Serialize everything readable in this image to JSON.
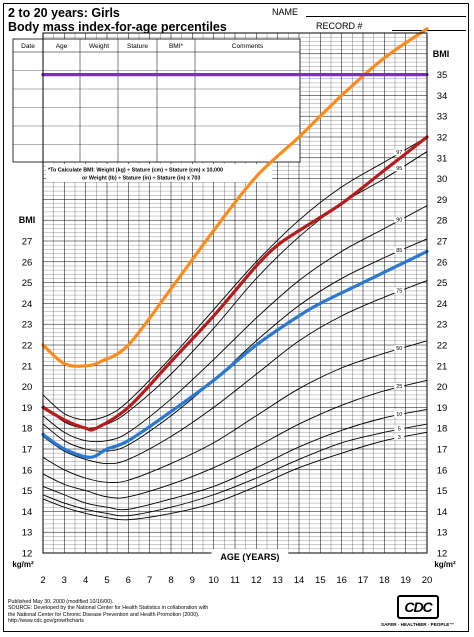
{
  "header": {
    "title_line1": "2 to 20 years: Girls",
    "title_line2": "Body mass index-for-age percentiles",
    "name_label": "NAME",
    "record_label": "RECORD #"
  },
  "table": {
    "columns": [
      "Date",
      "Age",
      "Weight",
      "Stature",
      "BMI*",
      "Comments"
    ]
  },
  "formula": {
    "line1": "*To Calculate BMI: Weight (kg) ÷ Stature (cm) ÷ Stature (cm) x 10,000",
    "line2": "or Weight (lb) ÷ Stature (in) ÷ Stature (in) x 703"
  },
  "footer": {
    "line1": "Published May 30, 2000 (modified 10/16/00).",
    "line2": "SOURCE: Developed by the National Center for Health Statistics in collaboration with",
    "line3": "the National Center for Chronic Disease Prevention and Health Promotion (2000).",
    "line4": "http://www.cdc.gov/growthcharts",
    "logo": "CDC",
    "tagline": "SAFER · HEALTHIER · PEOPLE™"
  },
  "colors": {
    "orange": "#ff8c1a",
    "red": "#b51c1c",
    "blue": "#2a78d0",
    "purple": "#7b2fbe"
  },
  "chart_data": {
    "type": "line",
    "xlabel": "AGE (YEARS)",
    "ylabel_top": "BMI",
    "ylabel_mid": "BMI",
    "unit_label": "kg/m²",
    "xlim": [
      2,
      20
    ],
    "ylim": [
      12,
      37
    ],
    "x_ticks": [
      2,
      3,
      4,
      5,
      6,
      7,
      8,
      9,
      10,
      11,
      12,
      13,
      14,
      15,
      16,
      17,
      18,
      19,
      20
    ],
    "y_ticks_right": [
      12,
      13,
      14,
      15,
      16,
      17,
      18,
      19,
      20,
      21,
      22,
      23,
      24,
      25,
      26,
      27,
      28,
      29,
      30,
      31,
      32,
      33,
      34,
      35
    ],
    "y_ticks_left": [
      12,
      13,
      14,
      15,
      16,
      17,
      18,
      19,
      20,
      21,
      22,
      23,
      24,
      25,
      26,
      27
    ],
    "percentiles": [
      {
        "name": "97",
        "x": [
          2,
          3,
          4,
          5,
          6,
          8,
          10,
          12,
          14,
          16,
          18,
          20
        ],
        "y": [
          19.6,
          18.7,
          18.4,
          18.6,
          19.3,
          21.4,
          23.7,
          26.0,
          28.0,
          29.6,
          30.8,
          32.0
        ]
      },
      {
        "name": "95",
        "x": [
          2,
          3,
          4,
          5,
          6,
          8,
          10,
          12,
          14,
          16,
          18,
          20
        ],
        "y": [
          19.1,
          18.3,
          18.0,
          18.2,
          18.8,
          20.6,
          22.8,
          25.2,
          27.2,
          28.8,
          30.0,
          31.3
        ]
      },
      {
        "name": "90",
        "x": [
          2,
          3,
          4,
          5,
          6,
          8,
          10,
          12,
          14,
          16,
          18,
          20
        ],
        "y": [
          18.6,
          17.8,
          17.4,
          17.4,
          17.8,
          19.4,
          21.3,
          23.3,
          25.1,
          26.5,
          27.6,
          28.7
        ]
      },
      {
        "name": "85",
        "x": [
          2,
          3,
          4,
          5,
          6,
          8,
          10,
          12,
          14,
          16,
          18,
          20
        ],
        "y": [
          18.2,
          17.4,
          17.0,
          16.9,
          17.2,
          18.6,
          20.3,
          22.2,
          23.9,
          25.2,
          26.2,
          27.1
        ]
      },
      {
        "name": "75",
        "x": [
          2,
          3,
          4,
          5,
          6,
          8,
          10,
          12,
          14,
          16,
          18,
          20
        ],
        "y": [
          17.6,
          16.9,
          16.5,
          16.3,
          16.5,
          17.6,
          19.0,
          20.6,
          22.2,
          23.4,
          24.3,
          25.1
        ]
      },
      {
        "name": "50",
        "x": [
          2,
          3,
          4,
          5,
          6,
          8,
          10,
          12,
          14,
          16,
          18,
          20
        ],
        "y": [
          16.6,
          16.0,
          15.6,
          15.4,
          15.5,
          16.3,
          17.3,
          18.6,
          19.9,
          20.9,
          21.6,
          22.2
        ]
      },
      {
        "name": "25",
        "x": [
          2,
          3,
          4,
          5,
          6,
          8,
          10,
          12,
          14,
          16,
          18,
          20
        ],
        "y": [
          15.8,
          15.3,
          15.0,
          14.7,
          14.7,
          15.3,
          16.1,
          17.1,
          18.2,
          19.1,
          19.8,
          20.3
        ]
      },
      {
        "name": "10",
        "x": [
          2,
          3,
          4,
          5,
          6,
          8,
          10,
          12,
          14,
          16,
          18,
          20
        ],
        "y": [
          15.2,
          14.8,
          14.4,
          14.2,
          14.1,
          14.6,
          15.2,
          16.1,
          17.1,
          17.9,
          18.5,
          18.9
        ]
      },
      {
        "name": "5",
        "x": [
          2,
          3,
          4,
          5,
          6,
          8,
          10,
          12,
          14,
          16,
          18,
          20
        ],
        "y": [
          14.8,
          14.4,
          14.1,
          13.9,
          13.8,
          14.2,
          14.8,
          15.6,
          16.5,
          17.3,
          17.8,
          18.2
        ]
      },
      {
        "name": "3",
        "x": [
          2,
          3,
          4,
          5,
          6,
          8,
          10,
          12,
          14,
          16,
          18,
          20
        ],
        "y": [
          14.6,
          14.2,
          13.9,
          13.7,
          13.6,
          13.9,
          14.4,
          15.2,
          16.1,
          16.8,
          17.4,
          17.8
        ]
      }
    ],
    "highlight_series": [
      {
        "color": "orange",
        "x": [
          2,
          3,
          4,
          4.7,
          6,
          8,
          10,
          12,
          14,
          16,
          18,
          20
        ],
        "y": [
          22,
          21.1,
          21.0,
          21.2,
          22.0,
          24.7,
          27.5,
          30.1,
          32.0,
          34.0,
          35.8,
          37.2
        ]
      },
      {
        "color": "red",
        "x": [
          2,
          3,
          4,
          4.5,
          6,
          8,
          10,
          12,
          13,
          14,
          16,
          18,
          20
        ],
        "y": [
          19.0,
          18.4,
          18.0,
          18.0,
          19.0,
          21.2,
          23.4,
          25.8,
          26.8,
          27.5,
          28.8,
          30.4,
          32.0
        ]
      },
      {
        "color": "blue",
        "x": [
          2,
          3,
          4.2,
          5,
          6,
          8,
          10,
          12,
          14,
          15,
          17,
          19,
          20
        ],
        "y": [
          17.7,
          17.0,
          16.6,
          17.0,
          17.4,
          18.8,
          20.3,
          22.0,
          23.4,
          24.0,
          25.0,
          26.0,
          26.5
        ]
      },
      {
        "color": "purple",
        "x": [
          2,
          20
        ],
        "y": [
          35,
          35
        ]
      }
    ]
  }
}
